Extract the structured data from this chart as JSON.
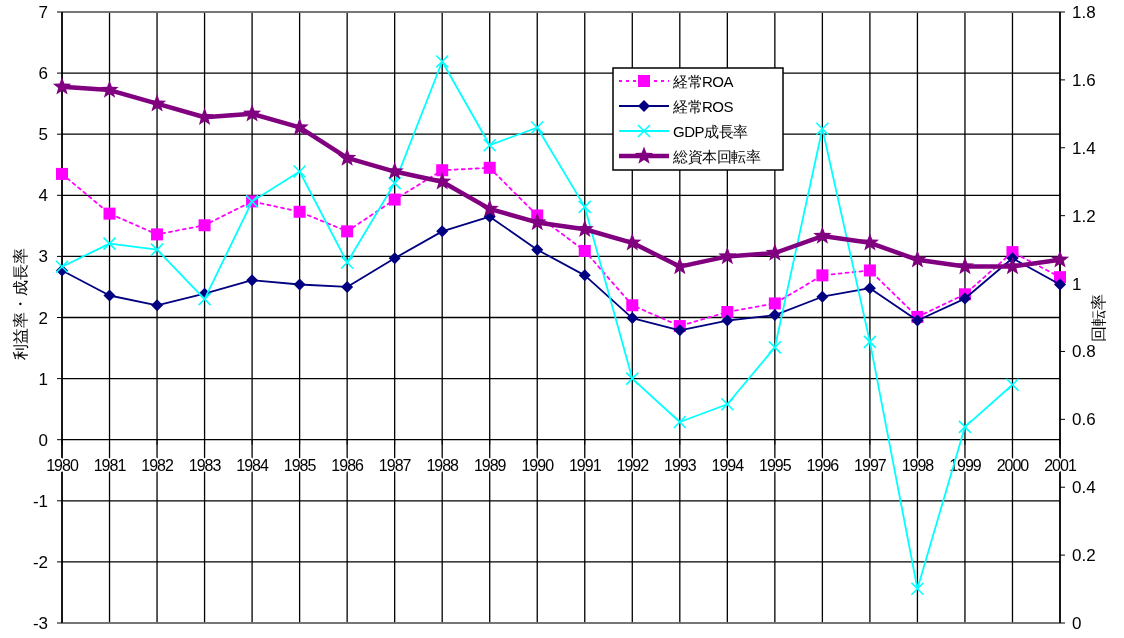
{
  "chart_data": {
    "type": "line",
    "ylabel": "利益率・成長率",
    "y2label": "回転率",
    "x": [
      1980,
      1981,
      1982,
      1983,
      1984,
      1985,
      1986,
      1987,
      1988,
      1989,
      1990,
      1991,
      1992,
      1993,
      1994,
      1995,
      1996,
      1997,
      1998,
      1999,
      2000,
      2001
    ],
    "xlim": [
      1980,
      2001
    ],
    "xticks": [
      1980,
      1981,
      1982,
      1983,
      1984,
      1985,
      1986,
      1987,
      1988,
      1989,
      1990,
      1991,
      1992,
      1993,
      1994,
      1995,
      1996,
      1997,
      1998,
      1999,
      2000,
      2001
    ],
    "ylim": [
      -3,
      7
    ],
    "yticks": [
      -3,
      -2,
      -1,
      0,
      1,
      2,
      3,
      4,
      5,
      6,
      7
    ],
    "y2lim": [
      0,
      1.8
    ],
    "y2ticks": [
      0,
      0.2,
      0.4,
      0.6,
      0.8,
      1,
      1.2,
      1.4,
      1.6,
      1.8
    ],
    "grid": true,
    "legend": "top right",
    "series": [
      {
        "name": "経常ROA",
        "color": "#ff00ff",
        "marker": "square",
        "line_style": "dotted",
        "values": [
          4.35,
          3.7,
          3.36,
          3.51,
          3.9,
          3.73,
          3.41,
          3.93,
          4.41,
          4.45,
          3.67,
          3.09,
          2.2,
          1.86,
          2.09,
          2.23,
          2.69,
          2.77,
          2.01,
          2.38,
          3.07,
          2.66
        ]
      },
      {
        "name": "経常ROS",
        "color": "#000080",
        "marker": "diamond",
        "line_style": "solid",
        "values": [
          2.77,
          2.36,
          2.2,
          2.39,
          2.61,
          2.54,
          2.5,
          2.97,
          3.41,
          3.65,
          3.11,
          2.69,
          1.99,
          1.79,
          1.95,
          2.04,
          2.34,
          2.48,
          1.95,
          2.31,
          2.97,
          2.54
        ]
      },
      {
        "name": "GDP成長率",
        "color": "#00ffff",
        "marker": "cross",
        "line_style": "solid",
        "values": [
          2.83,
          3.21,
          3.11,
          2.3,
          3.9,
          4.39,
          2.9,
          4.2,
          6.19,
          4.82,
          5.11,
          3.81,
          1.0,
          0.29,
          0.58,
          1.51,
          5.09,
          1.6,
          -2.44,
          0.21,
          0.9,
          null
        ]
      },
      {
        "name": "総資本回転率",
        "color": "#800080",
        "marker": "star",
        "line_style": "solid",
        "axis": "y2",
        "values": [
          1.58,
          1.57,
          1.53,
          1.49,
          1.5,
          1.46,
          1.37,
          1.33,
          1.3,
          1.22,
          1.18,
          1.16,
          1.12,
          1.05,
          1.08,
          1.09,
          1.14,
          1.12,
          1.07,
          1.05,
          1.05,
          1.07
        ]
      }
    ]
  }
}
